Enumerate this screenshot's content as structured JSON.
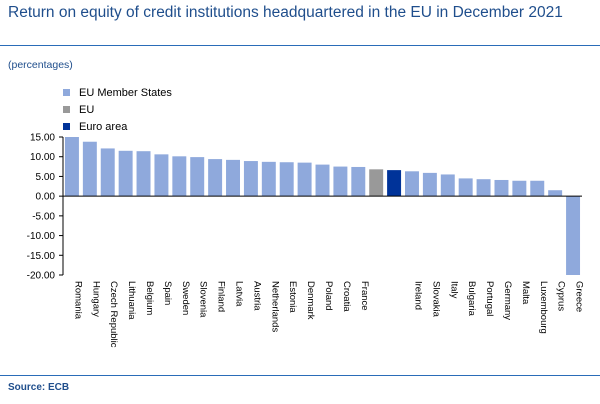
{
  "title": "Return on equity of credit institutions headquartered in the EU in December 2021",
  "units": "(percentages)",
  "source": "Source: ECB",
  "legend": [
    {
      "label": "EU Member States",
      "color": "#8fa9dc"
    },
    {
      "label": "EU",
      "color": "#999999"
    },
    {
      "label": "Euro area",
      "color": "#003399"
    }
  ],
  "chart_data": {
    "type": "bar",
    "title": "Return on equity of credit institutions headquartered in the EU in December 2021",
    "ylabel": "(percentages)",
    "ylim": [
      -20,
      15
    ],
    "yticks": [
      "15.00",
      "10.00",
      "5.00",
      "0.00",
      "-5.00",
      "-10.00",
      "-15.00",
      "-20.00"
    ],
    "legend_position": "top-left",
    "grid": false,
    "categories": [
      "Romania",
      "Hungary",
      "Czech Republic",
      "Lithuania",
      "Belgium",
      "Spain",
      "Sweden",
      "Slovenia",
      "Finland",
      "Latvia",
      "Austria",
      "Netherlands",
      "Estonia",
      "Denmark",
      "Poland",
      "Croatia",
      "France",
      "",
      "",
      "Ireland",
      "Slovakia",
      "Italy",
      "Bulgaria",
      "Portugal",
      "Germany",
      "Malta",
      "Luxembourg",
      "Cyprus",
      "Greece"
    ],
    "values": [
      15.0,
      13.8,
      12.1,
      11.5,
      11.4,
      10.6,
      10.1,
      9.9,
      9.4,
      9.2,
      8.9,
      8.7,
      8.6,
      8.5,
      8.0,
      7.5,
      7.4,
      6.8,
      6.6,
      6.3,
      5.9,
      5.5,
      4.5,
      4.3,
      4.1,
      3.9,
      3.9,
      1.5,
      -20.0
    ],
    "groups": [
      "EU Member States",
      "EU Member States",
      "EU Member States",
      "EU Member States",
      "EU Member States",
      "EU Member States",
      "EU Member States",
      "EU Member States",
      "EU Member States",
      "EU Member States",
      "EU Member States",
      "EU Member States",
      "EU Member States",
      "EU Member States",
      "EU Member States",
      "EU Member States",
      "EU Member States",
      "EU",
      "Euro area",
      "EU Member States",
      "EU Member States",
      "EU Member States",
      "EU Member States",
      "EU Member States",
      "EU Member States",
      "EU Member States",
      "EU Member States",
      "EU Member States",
      "EU Member States"
    ]
  }
}
